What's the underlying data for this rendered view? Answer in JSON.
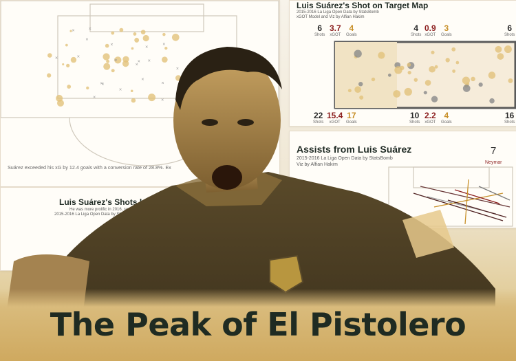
{
  "shot_map": {
    "title": "Luis Suárez's Shot on Target Map",
    "subtitle_1": "2015-2016 La Liga Open Data by StatsBomb",
    "subtitle_2": "xGOT Model and Viz by Alfian Hakim",
    "top_stats": [
      {
        "value": "6",
        "label": "Shots",
        "tone": "dark"
      },
      {
        "value": "3.7",
        "label": "xGOT",
        "tone": "red"
      },
      {
        "value": "4",
        "label": "Goals",
        "tone": "gold"
      },
      {
        "value": "4",
        "label": "Shots",
        "tone": "dark"
      },
      {
        "value": "0.9",
        "label": "xGOT",
        "tone": "red"
      },
      {
        "value": "3",
        "label": "Goals",
        "tone": "gold"
      },
      {
        "value": "6",
        "label": "Shots",
        "tone": "dark"
      }
    ],
    "bottom_stats": [
      {
        "value": "22",
        "label": "Shots",
        "tone": "dark"
      },
      {
        "value": "15.4",
        "label": "xGOT",
        "tone": "red"
      },
      {
        "value": "17",
        "label": "Goals",
        "tone": "gold"
      },
      {
        "value": "10",
        "label": "Shots",
        "tone": "dark"
      },
      {
        "value": "2.2",
        "label": "xGOT",
        "tone": "red"
      },
      {
        "value": "4",
        "label": "Goals",
        "tone": "gold"
      },
      {
        "value": "16",
        "label": "Shots",
        "tone": "dark"
      }
    ]
  },
  "assists": {
    "title": "Assists from Luis Suárez",
    "subtitle_1": "2015-2016 La Liga Open Data by StatsBomb",
    "subtitle_2": "Viz by Alfian Hakim",
    "top_value": "7",
    "top_name": "Neymar"
  },
  "pitch": {
    "caption": "Suárez exceeded his xG by 12.4 goals with a conversion rate of 28.8%. Ex"
  },
  "monthly": {
    "title": "Luis Suárez's Shots by Month",
    "subtitle_1": "He was more prolific in 2016, scoring",
    "subtitle_2": "2015-2016 La Liga Open Data by StatsBom"
  },
  "headline": "The Peak of El Pistolero",
  "colors": {
    "headline": "#1f2b22",
    "gold": "#c8902a",
    "red": "#8b1d1d",
    "band": "#d9bb7c"
  }
}
